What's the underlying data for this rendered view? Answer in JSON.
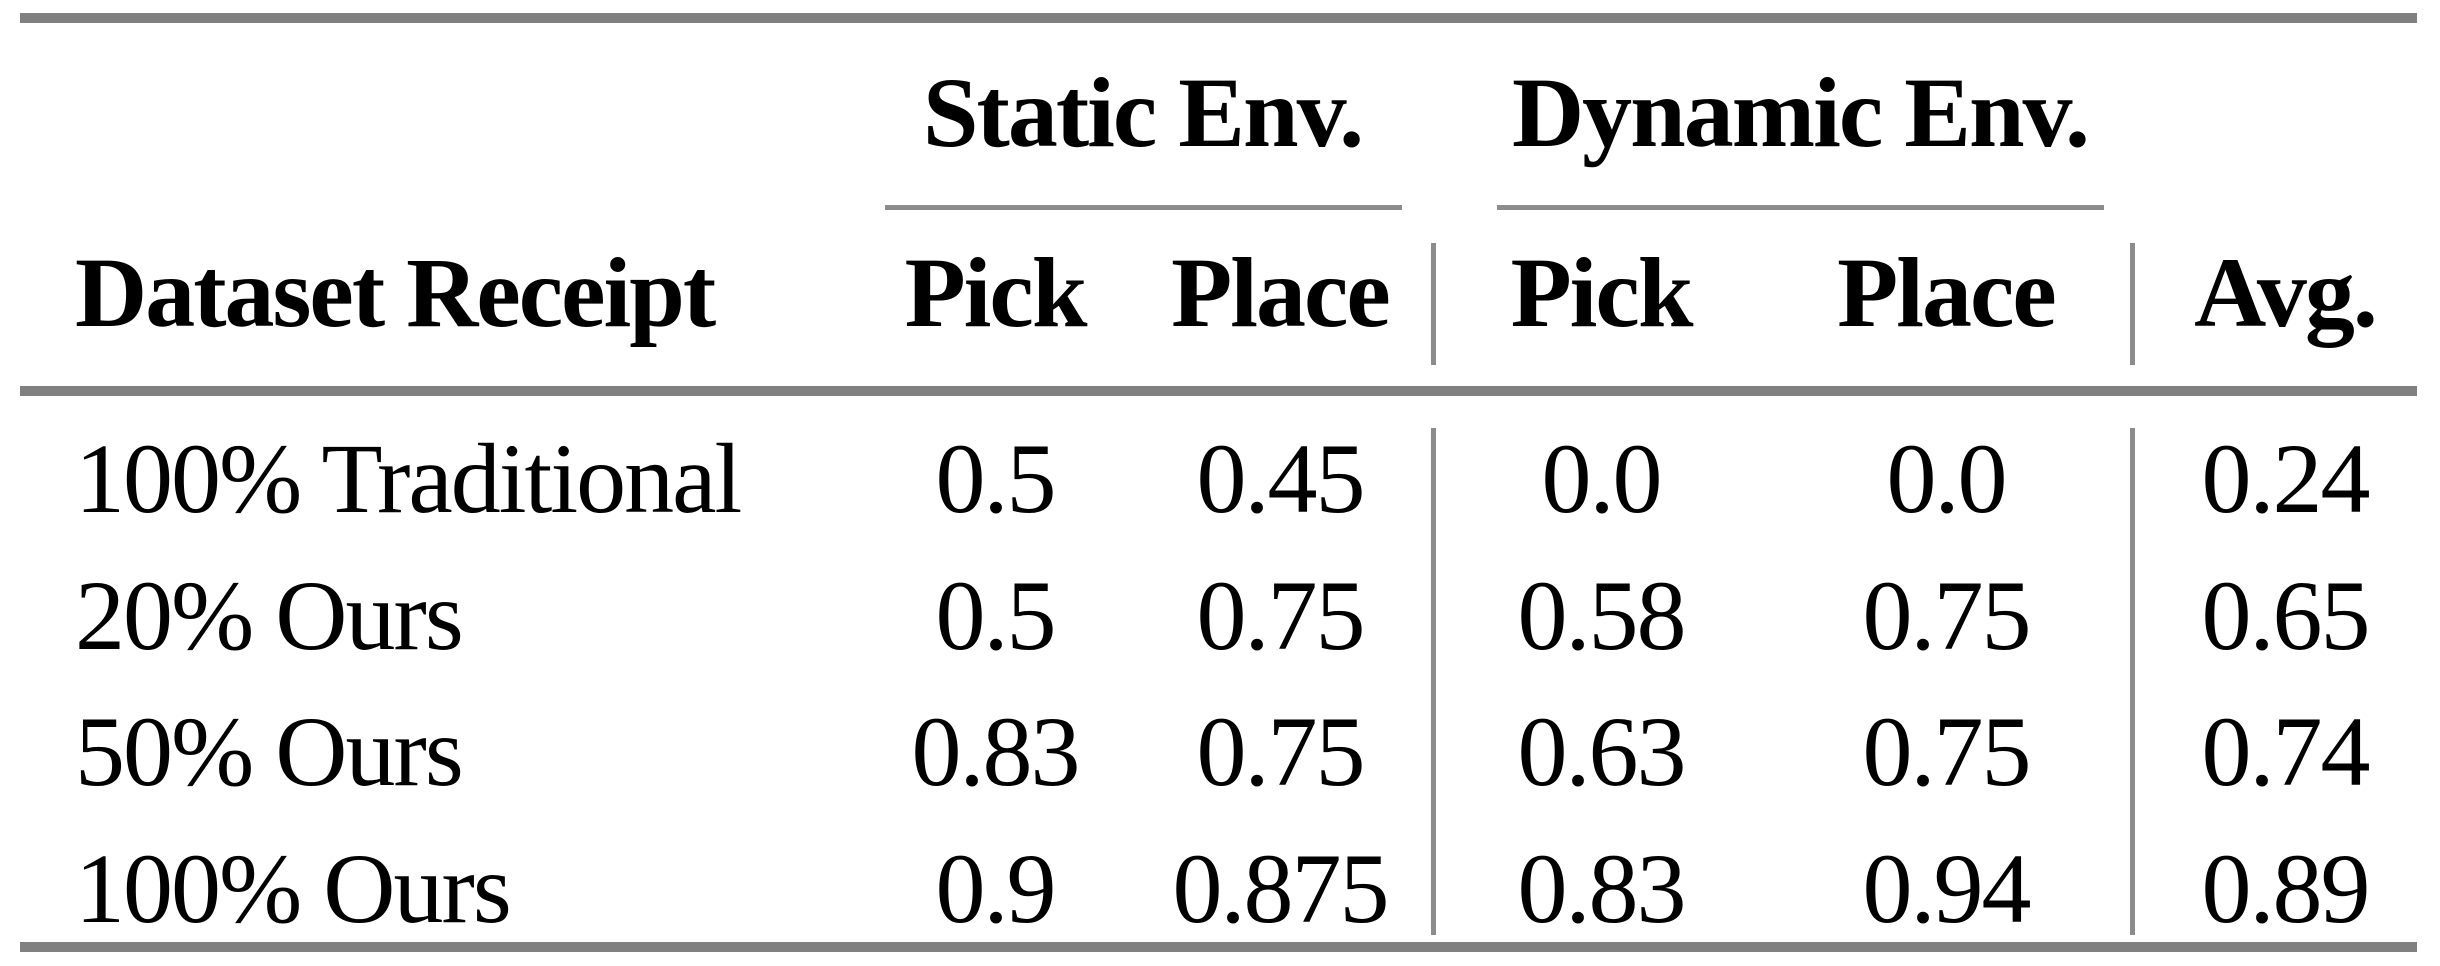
{
  "table": {
    "group_headers": [
      {
        "label": "Static Env."
      },
      {
        "label": "Dynamic Env."
      }
    ],
    "column_headers": {
      "dataset": "Dataset Receipt",
      "static_pick": "Pick",
      "static_place": "Place",
      "dynamic_pick": "Pick",
      "dynamic_place": "Place",
      "avg": "Avg."
    },
    "rows": [
      {
        "label": "100% Traditional",
        "static_pick": "0.5",
        "static_place": "0.45",
        "dynamic_pick": "0.0",
        "dynamic_place": "0.0",
        "avg": "0.24"
      },
      {
        "label": "20% Ours",
        "static_pick": "0.5",
        "static_place": "0.75",
        "dynamic_pick": "0.58",
        "dynamic_place": "0.75",
        "avg": "0.65"
      },
      {
        "label": "50% Ours",
        "static_pick": "0.83",
        "static_place": "0.75",
        "dynamic_pick": "0.63",
        "dynamic_place": "0.75",
        "avg": "0.74"
      },
      {
        "label": "100% Ours",
        "static_pick": "0.9",
        "static_place": "0.875",
        "dynamic_pick": "0.83",
        "dynamic_place": "0.94",
        "avg": "0.89"
      }
    ]
  },
  "colors": {
    "rule_gray": "#808080",
    "separator_gray": "#8c8c8c",
    "text": "#000000",
    "background": "#ffffff"
  }
}
